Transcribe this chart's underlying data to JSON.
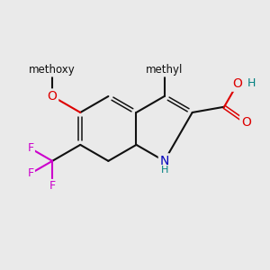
{
  "bg": "#eaeaea",
  "bc": "#111111",
  "bw": 1.5,
  "O_color": "#dd0000",
  "N_color": "#0000bb",
  "F_color": "#cc00cc",
  "H_color": "#008080",
  "fs": 10,
  "fss": 9,
  "bl": 1.22,
  "figsize": [
    3.0,
    3.0
  ],
  "dpi": 100,
  "methoxy_label": "methoxy",
  "methyl_label": "methyl",
  "N_label": "N",
  "H_label": "H",
  "O_label": "O",
  "F_label": "F"
}
